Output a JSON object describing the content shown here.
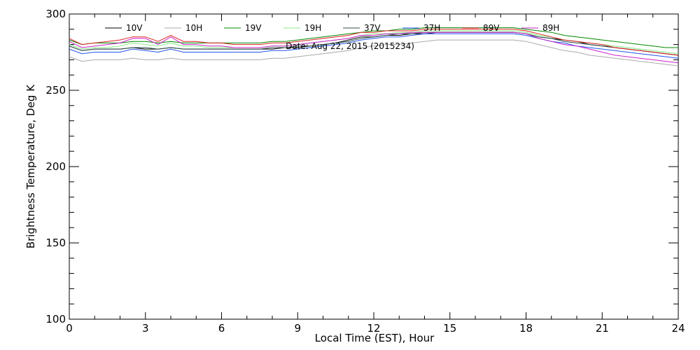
{
  "chart_data": {
    "type": "line",
    "xlabel": "Local Time (EST), Hour",
    "ylabel": "Brightness Temperature, Deg K",
    "subtitle": "Date: Aug 22, 2015 (2015234)",
    "xlim": [
      0,
      24
    ],
    "ylim": [
      100,
      300
    ],
    "xticks": [
      0,
      3,
      6,
      9,
      12,
      15,
      18,
      21,
      24
    ],
    "yticks": [
      100,
      150,
      200,
      250,
      300
    ],
    "x_minor_step": 1,
    "y_minor_step": 10,
    "grid": false,
    "legend_position": "top",
    "x": [
      0,
      0.5,
      1,
      1.5,
      2,
      2.5,
      3,
      3.5,
      4,
      4.5,
      5,
      5.5,
      6,
      6.5,
      7,
      7.5,
      8,
      8.5,
      9,
      9.5,
      10,
      10.5,
      11,
      11.5,
      12,
      12.5,
      13,
      13.5,
      14,
      14.5,
      15,
      15.5,
      16,
      16.5,
      17,
      17.5,
      18,
      18.5,
      19,
      19.5,
      20,
      20.5,
      21,
      21.5,
      22,
      22.5,
      23,
      23.5,
      24
    ],
    "series": [
      {
        "name": "10V",
        "color": "#000000",
        "values": [
          279,
          276,
          277,
          277,
          277,
          278,
          277,
          277,
          278,
          277,
          277,
          277,
          277,
          277,
          277,
          277,
          277,
          278,
          278,
          279,
          280,
          281,
          283,
          285,
          285,
          286,
          286,
          287,
          287,
          288,
          288,
          288,
          288,
          288,
          288,
          288,
          287,
          285,
          284,
          283,
          282,
          280,
          279,
          278,
          277,
          276,
          275,
          274,
          273
        ]
      },
      {
        "name": "10H",
        "color": "#aaaaaa",
        "values": [
          272,
          269,
          270,
          270,
          270,
          271,
          270,
          270,
          271,
          270,
          270,
          270,
          270,
          270,
          270,
          270,
          271,
          271,
          272,
          273,
          274,
          275,
          276,
          278,
          279,
          280,
          280,
          281,
          282,
          283,
          283,
          283,
          283,
          283,
          283,
          283,
          282,
          280,
          278,
          276,
          275,
          273,
          272,
          271,
          270,
          269,
          268,
          267,
          266
        ]
      },
      {
        "name": "19V",
        "color": "#008800",
        "values": [
          283,
          280,
          281,
          281,
          281,
          282,
          282,
          281,
          282,
          281,
          281,
          281,
          281,
          281,
          281,
          281,
          282,
          282,
          283,
          284,
          285,
          286,
          287,
          288,
          289,
          289,
          290,
          290,
          291,
          291,
          291,
          291,
          291,
          291,
          291,
          291,
          290,
          289,
          288,
          286,
          285,
          284,
          283,
          282,
          281,
          280,
          279,
          278,
          278
        ]
      },
      {
        "name": "19H",
        "color": "#88ee88",
        "values": [
          280,
          277,
          278,
          278,
          279,
          281,
          280,
          279,
          281,
          279,
          279,
          278,
          278,
          278,
          278,
          278,
          279,
          279,
          280,
          281,
          282,
          283,
          284,
          286,
          287,
          287,
          288,
          288,
          289,
          289,
          289,
          289,
          289,
          289,
          289,
          289,
          288,
          286,
          285,
          283,
          282,
          281,
          280,
          279,
          278,
          277,
          276,
          275,
          274
        ]
      },
      {
        "name": "37V",
        "color": "#2f4f4f",
        "values": [
          279,
          276,
          277,
          277,
          277,
          278,
          278,
          277,
          278,
          277,
          277,
          277,
          277,
          277,
          277,
          277,
          278,
          278,
          279,
          279,
          280,
          281,
          282,
          284,
          285,
          286,
          287,
          287,
          288,
          288,
          288,
          288,
          288,
          288,
          288,
          288,
          287,
          285,
          284,
          282,
          281,
          280,
          279,
          278,
          277,
          276,
          275,
          274,
          273
        ]
      },
      {
        "name": "37H",
        "color": "#2255ee",
        "values": [
          277,
          274,
          275,
          275,
          275,
          277,
          276,
          275,
          277,
          275,
          275,
          275,
          275,
          275,
          275,
          275,
          276,
          276,
          277,
          278,
          279,
          280,
          281,
          283,
          284,
          285,
          285,
          286,
          287,
          287,
          287,
          287,
          287,
          287,
          287,
          287,
          286,
          284,
          282,
          281,
          279,
          278,
          277,
          276,
          275,
          274,
          273,
          272,
          271
        ]
      },
      {
        "name": "89V",
        "color": "#dd2222",
        "values": [
          284,
          280,
          281,
          282,
          283,
          285,
          285,
          282,
          286,
          282,
          282,
          281,
          281,
          280,
          280,
          280,
          281,
          281,
          282,
          283,
          284,
          285,
          286,
          288,
          288,
          289,
          289,
          289,
          290,
          290,
          290,
          290,
          290,
          290,
          290,
          290,
          289,
          287,
          285,
          283,
          282,
          281,
          280,
          278,
          277,
          276,
          275,
          274,
          273
        ]
      },
      {
        "name": "89H",
        "color": "#cc22cc",
        "values": [
          282,
          278,
          279,
          280,
          281,
          284,
          284,
          280,
          285,
          280,
          280,
          279,
          279,
          278,
          278,
          278,
          279,
          279,
          280,
          281,
          282,
          283,
          284,
          286,
          286,
          287,
          287,
          288,
          288,
          288,
          288,
          288,
          288,
          288,
          288,
          288,
          287,
          284,
          282,
          280,
          279,
          277,
          275,
          273,
          272,
          271,
          270,
          269,
          268
        ]
      }
    ]
  }
}
